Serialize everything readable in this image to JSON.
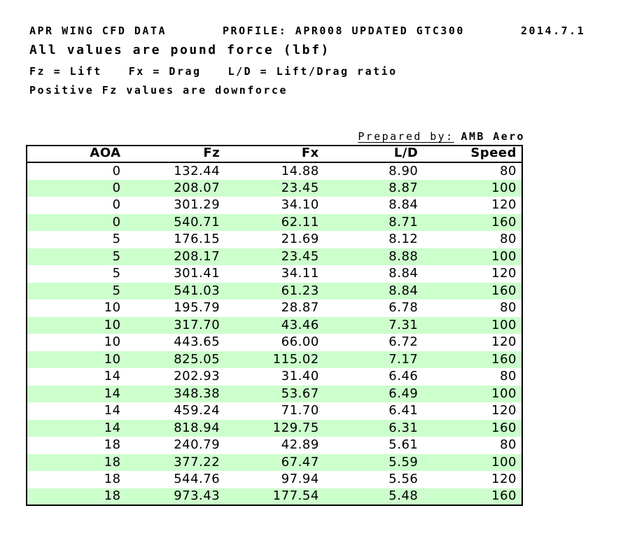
{
  "header": {
    "title": "APR WING CFD DATA",
    "profile": "PROFILE: APR008 UPDATED GTC300",
    "date": "2014.7.1",
    "subtitle": "All values are pound force (lbf)",
    "legend": [
      "Fz = Lift",
      "Fx = Drag",
      "L/D = Lift/Drag ratio"
    ],
    "note": "Positive Fz values are downforce"
  },
  "prepared": {
    "label": "Prepared by:",
    "value": "AMB Aero"
  },
  "table": {
    "columns": [
      "AOA",
      "Fz",
      "Fx",
      "L/D",
      "Speed"
    ],
    "rows": [
      [
        "0",
        "132.44",
        "14.88",
        "8.90",
        "80"
      ],
      [
        "0",
        "208.07",
        "23.45",
        "8.87",
        "100"
      ],
      [
        "0",
        "301.29",
        "34.10",
        "8.84",
        "120"
      ],
      [
        "0",
        "540.71",
        "62.11",
        "8.71",
        "160"
      ],
      [
        "5",
        "176.15",
        "21.69",
        "8.12",
        "80"
      ],
      [
        "5",
        "208.17",
        "23.45",
        "8.88",
        "100"
      ],
      [
        "5",
        "301.41",
        "34.11",
        "8.84",
        "120"
      ],
      [
        "5",
        "541.03",
        "61.23",
        "8.84",
        "160"
      ],
      [
        "10",
        "195.79",
        "28.87",
        "6.78",
        "80"
      ],
      [
        "10",
        "317.70",
        "43.46",
        "7.31",
        "100"
      ],
      [
        "10",
        "443.65",
        "66.00",
        "6.72",
        "120"
      ],
      [
        "10",
        "825.05",
        "115.02",
        "7.17",
        "160"
      ],
      [
        "14",
        "202.93",
        "31.40",
        "6.46",
        "80"
      ],
      [
        "14",
        "348.38",
        "53.67",
        "6.49",
        "100"
      ],
      [
        "14",
        "459.24",
        "71.70",
        "6.41",
        "120"
      ],
      [
        "14",
        "818.94",
        "129.75",
        "6.31",
        "160"
      ],
      [
        "18",
        "240.79",
        "42.89",
        "5.61",
        "80"
      ],
      [
        "18",
        "377.22",
        "67.47",
        "5.59",
        "100"
      ],
      [
        "18",
        "544.76",
        "97.94",
        "5.56",
        "120"
      ],
      [
        "18",
        "973.43",
        "177.54",
        "5.48",
        "160"
      ]
    ]
  },
  "colors": {
    "stripe_green": "#ccffcc",
    "border": "#000000",
    "text": "#000000"
  }
}
